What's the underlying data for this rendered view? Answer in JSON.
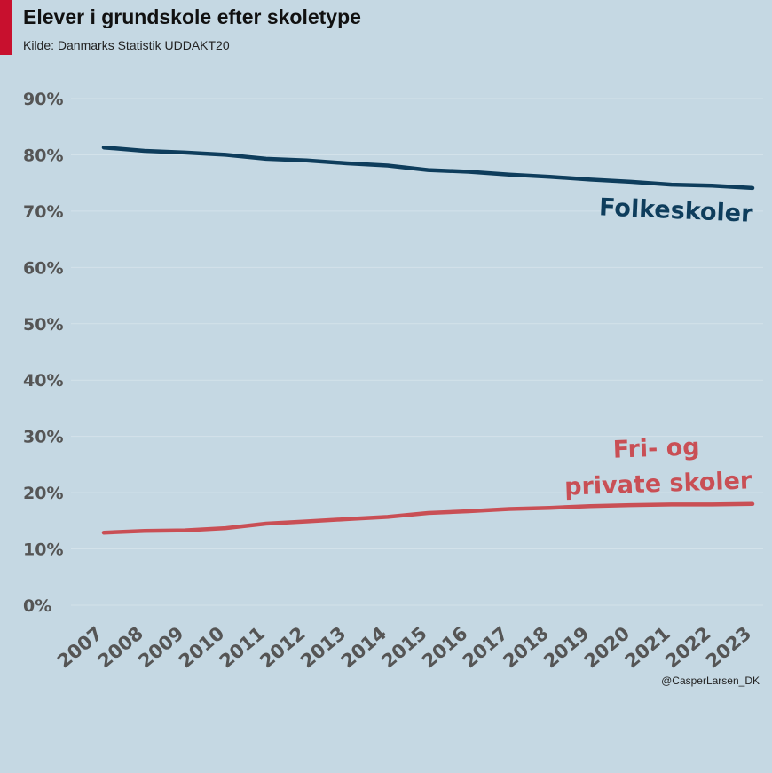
{
  "header": {
    "title": "Elever i grundskole efter skoletype",
    "subtitle": "Kilde: Danmarks Statistik UDDAKT20"
  },
  "footer": {
    "credit": "@CasperLarsen_DK"
  },
  "colors": {
    "background": "#c5d8e3",
    "accent": "#c8102e",
    "folkeskoler": "#0e3d5c",
    "friprivat": "#c94f55"
  },
  "chart_data": {
    "type": "line",
    "title": "Elever i grundskole efter skoletype",
    "xlabel": "",
    "ylabel": "",
    "x": [
      2007,
      2008,
      2009,
      2010,
      2011,
      2012,
      2013,
      2014,
      2015,
      2016,
      2017,
      2018,
      2019,
      2020,
      2021,
      2022,
      2023
    ],
    "ylim": [
      0,
      90
    ],
    "yticks": [
      0,
      10,
      20,
      30,
      40,
      50,
      60,
      70,
      80,
      90
    ],
    "ytick_labels": [
      "0%",
      "10%",
      "20%",
      "30%",
      "40%",
      "50%",
      "60%",
      "70%",
      "80%",
      "90%"
    ],
    "grid": true,
    "legend": "direct labels at line ends",
    "series": [
      {
        "name": "Folkeskoler",
        "label_lines": [
          "Folkeskoler"
        ],
        "color": "#0e3d5c",
        "values": [
          81.3,
          80.7,
          80.4,
          80.0,
          79.3,
          79.0,
          78.5,
          78.1,
          77.3,
          77.0,
          76.5,
          76.1,
          75.6,
          75.2,
          74.7,
          74.5,
          74.1
        ]
      },
      {
        "name": "Fri- og private skoler",
        "label_lines": [
          "Fri- og",
          "private skoler"
        ],
        "color": "#c94f55",
        "values": [
          12.9,
          13.2,
          13.3,
          13.7,
          14.5,
          14.9,
          15.3,
          15.7,
          16.4,
          16.7,
          17.1,
          17.3,
          17.6,
          17.8,
          17.9,
          17.9,
          18.0
        ]
      }
    ]
  }
}
